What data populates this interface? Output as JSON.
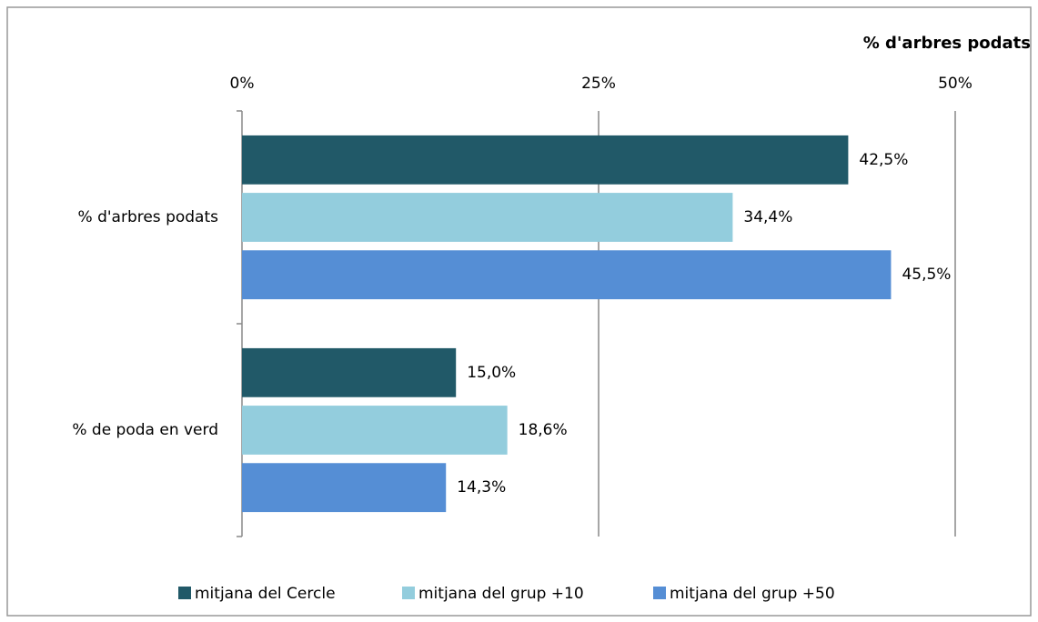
{
  "chart_data": {
    "type": "hbar",
    "x_label": "% d'arbres podats",
    "categories": [
      "% d'arbres podats",
      "% de poda en verd"
    ],
    "series": [
      {
        "name": "mitjana del Cercle",
        "color": "#215968",
        "values": [
          42.5,
          15.0
        ],
        "value_labels": [
          "42,5%",
          "15,0%"
        ]
      },
      {
        "name": "mitjana del grup +10",
        "color": "#93cddd",
        "values": [
          34.4,
          18.6
        ],
        "value_labels": [
          "34,4%",
          "18,6%"
        ]
      },
      {
        "name": "mitjana del grup +50",
        "color": "#558ed5",
        "values": [
          45.5,
          14.3
        ],
        "value_labels": [
          "45,5%",
          "14,3%"
        ]
      }
    ],
    "xlim": [
      0,
      50
    ],
    "xticks": [
      {
        "value": 0,
        "label": "0%"
      },
      {
        "value": 25,
        "label": "25%"
      },
      {
        "value": 50,
        "label": "50%"
      }
    ],
    "grid": true,
    "legend": "bottom"
  }
}
